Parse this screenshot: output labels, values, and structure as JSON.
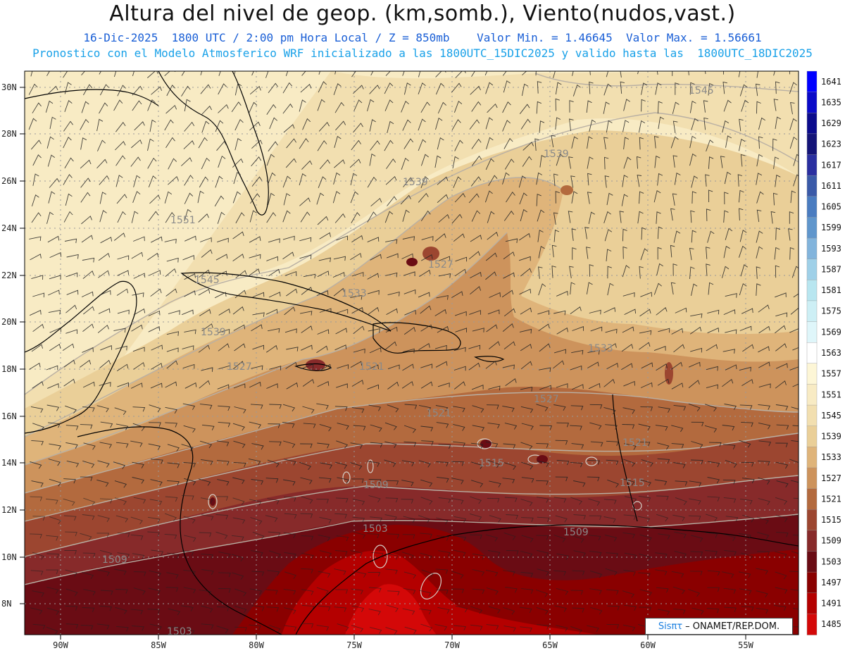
{
  "header": {
    "title": "Altura del nivel de geop. (km,somb.), Viento(nudos,vast.)",
    "line1": "16-Dic-2025  1800 UTC / 2:00 pm Hora Local / Z = 850mb    Valor Min. = 1.46645  Valor Max. = 1.56661",
    "line2": "Pronostico con el Modelo Atmosferico WRF inicializado a las 1800UTC_15DIC2025 y valido hasta las  1800UTC_18DIC2025"
  },
  "chart_data": {
    "type": "heatmap",
    "x_ticks": [
      "90W",
      "85W",
      "80W",
      "75W",
      "70W",
      "65W",
      "60W",
      "55W"
    ],
    "y_ticks": [
      "30N",
      "28N",
      "26N",
      "24N",
      "22N",
      "20N",
      "18N",
      "16N",
      "14N",
      "12N",
      "10N",
      "8N"
    ],
    "colorbar_levels": [
      "1641",
      "1635",
      "1629",
      "1623",
      "1617",
      "1611",
      "1605",
      "1599",
      "1593",
      "1587",
      "1581",
      "1575",
      "1569",
      "1563",
      "1557",
      "1551",
      "1545",
      "1539",
      "1533",
      "1527",
      "1521",
      "1515",
      "1509",
      "1503",
      "1497",
      "1491",
      "1485"
    ],
    "colorbar_colors": [
      "#0000ff",
      "#0a0ac8",
      "#0b0b8c",
      "#141478",
      "#2a2fa0",
      "#3a5aa8",
      "#4a7cc0",
      "#6096cc",
      "#82b4dc",
      "#9fd0e8",
      "#b8e6f0",
      "#cdeff5",
      "#dff6fa",
      "#ffffff",
      "#fdf6d6",
      "#f8ebc4",
      "#f2dfb0",
      "#eacf98",
      "#dfb47a",
      "#cd935c",
      "#b36a3e",
      "#9c4630",
      "#872a2a",
      "#6a0c14",
      "#8a0000",
      "#b40000",
      "#d40808"
    ],
    "contour_labels": [
      "1545",
      "1539",
      "1539",
      "1551",
      "1545",
      "1539",
      "1533",
      "1527",
      "1521",
      "1527",
      "1533",
      "1527",
      "1521",
      "1515",
      "1515",
      "1521",
      "1509",
      "1503",
      "1509",
      "1509",
      "1503"
    ],
    "credit": {
      "logo": "Sisπτ",
      "text": "– ONAMET/REP.DOM."
    }
  }
}
